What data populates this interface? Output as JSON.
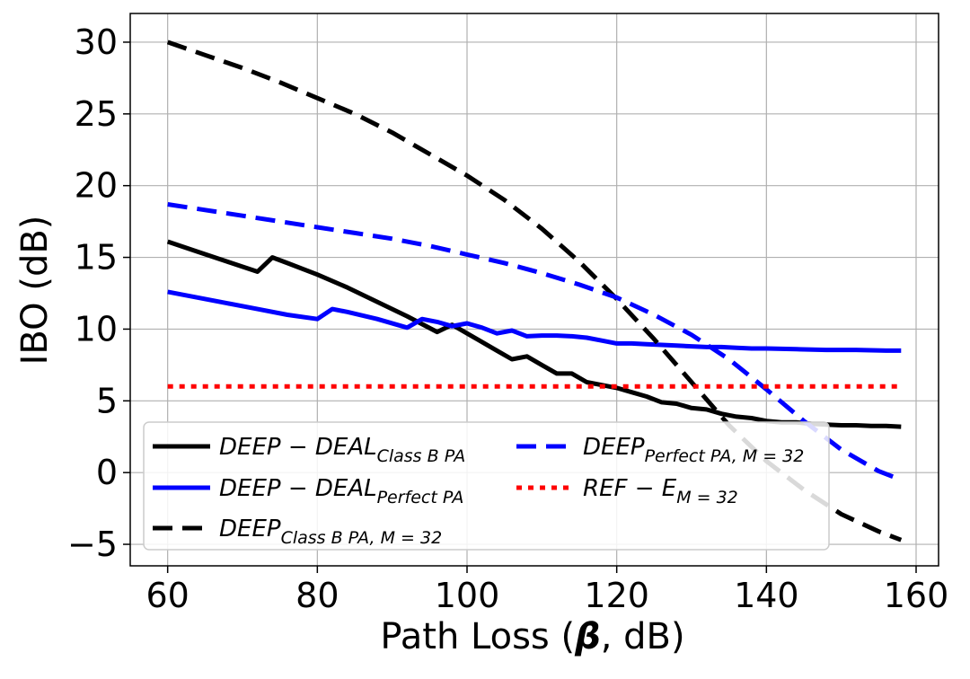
{
  "chart_data": {
    "type": "line",
    "title": "",
    "xlabel_prefix": "Path Loss (",
    "xlabel_symbol": "β",
    "xlabel_suffix": ", dB)",
    "ylabel": "IBO (dB)",
    "xlim": [
      55,
      163
    ],
    "ylim": [
      -6.5,
      32
    ],
    "xticks": [
      60,
      80,
      100,
      120,
      140,
      160
    ],
    "yticks": [
      30,
      25,
      20,
      15,
      10,
      5,
      0,
      -5
    ],
    "ytick_labels": [
      "30",
      "25",
      "20",
      "15",
      "10",
      "5",
      "0",
      "−5"
    ],
    "grid": true,
    "legend_position": "lower-left",
    "series": [
      {
        "id": "deal-classb",
        "legend_main": "DEEP − DEAL",
        "legend_sub": "Class B PA",
        "color": "#000000",
        "dash": "solid",
        "x": [
          60,
          64,
          68,
          72,
          74,
          76,
          80,
          84,
          88,
          92,
          96,
          98,
          100,
          102,
          104,
          106,
          108,
          110,
          112,
          114,
          116,
          118,
          120,
          122,
          124,
          126,
          128,
          130,
          132,
          134,
          136,
          138,
          140,
          142,
          144,
          146,
          148,
          150,
          152,
          154,
          156,
          158
        ],
        "y": [
          16.1,
          15.4,
          14.7,
          14.0,
          15.0,
          14.6,
          13.8,
          12.9,
          11.9,
          10.9,
          9.8,
          10.3,
          9.7,
          9.1,
          8.5,
          7.9,
          8.1,
          7.5,
          6.9,
          6.9,
          6.3,
          6.1,
          5.9,
          5.6,
          5.3,
          4.9,
          4.8,
          4.5,
          4.4,
          4.1,
          3.9,
          3.8,
          3.6,
          3.5,
          3.5,
          3.4,
          3.35,
          3.3,
          3.3,
          3.25,
          3.25,
          3.2
        ]
      },
      {
        "id": "deal-perfect",
        "legend_main": "DEEP − DEAL",
        "legend_sub": "Perfect PA",
        "color": "#0000ff",
        "dash": "solid",
        "x": [
          60,
          64,
          68,
          72,
          76,
          80,
          82,
          84,
          88,
          92,
          94,
          96,
          98,
          100,
          102,
          104,
          106,
          108,
          110,
          112,
          114,
          116,
          118,
          120,
          122,
          124,
          126,
          128,
          130,
          132,
          134,
          136,
          138,
          140,
          144,
          148,
          152,
          156,
          158
        ],
        "y": [
          12.6,
          12.2,
          11.8,
          11.4,
          11.0,
          10.7,
          11.4,
          11.2,
          10.7,
          10.1,
          10.7,
          10.5,
          10.2,
          10.4,
          10.1,
          9.7,
          9.9,
          9.5,
          9.55,
          9.55,
          9.5,
          9.4,
          9.2,
          9.0,
          9.0,
          8.95,
          8.9,
          8.85,
          8.8,
          8.75,
          8.75,
          8.7,
          8.65,
          8.65,
          8.6,
          8.55,
          8.55,
          8.5,
          8.5
        ]
      },
      {
        "id": "deep-classb",
        "legend_main": "DEEP",
        "legend_sub": "Class B PA, M = 32",
        "color": "#000000",
        "dash": "dashed",
        "x": [
          60,
          65,
          70,
          75,
          80,
          85,
          90,
          95,
          100,
          105,
          110,
          115,
          120,
          125,
          130,
          135,
          140,
          145,
          150,
          155,
          158
        ],
        "y": [
          30.0,
          29.1,
          28.2,
          27.2,
          26.1,
          25.0,
          23.7,
          22.2,
          20.7,
          19.0,
          17.0,
          14.7,
          12.1,
          9.3,
          6.3,
          3.3,
          0.8,
          -1.2,
          -2.9,
          -4.1,
          -4.7
        ]
      },
      {
        "id": "deep-perfect",
        "legend_main": "DEEP",
        "legend_sub": "Perfect PA, M = 32",
        "color": "#0000ff",
        "dash": "dashed",
        "x": [
          60,
          65,
          70,
          75,
          80,
          85,
          90,
          95,
          100,
          105,
          110,
          115,
          120,
          125,
          130,
          135,
          140,
          145,
          150,
          155,
          158
        ],
        "y": [
          18.7,
          18.3,
          17.9,
          17.5,
          17.1,
          16.7,
          16.3,
          15.8,
          15.2,
          14.6,
          13.9,
          13.1,
          12.2,
          11.0,
          9.6,
          7.9,
          5.8,
          3.6,
          1.6,
          0.1,
          -0.5
        ]
      },
      {
        "id": "ref-e",
        "legend_main": "REF − E",
        "legend_sub": "M = 32",
        "color": "#ff0000",
        "dash": "dotted",
        "x": [
          60,
          158
        ],
        "y": [
          6.0,
          6.0
        ]
      }
    ]
  }
}
